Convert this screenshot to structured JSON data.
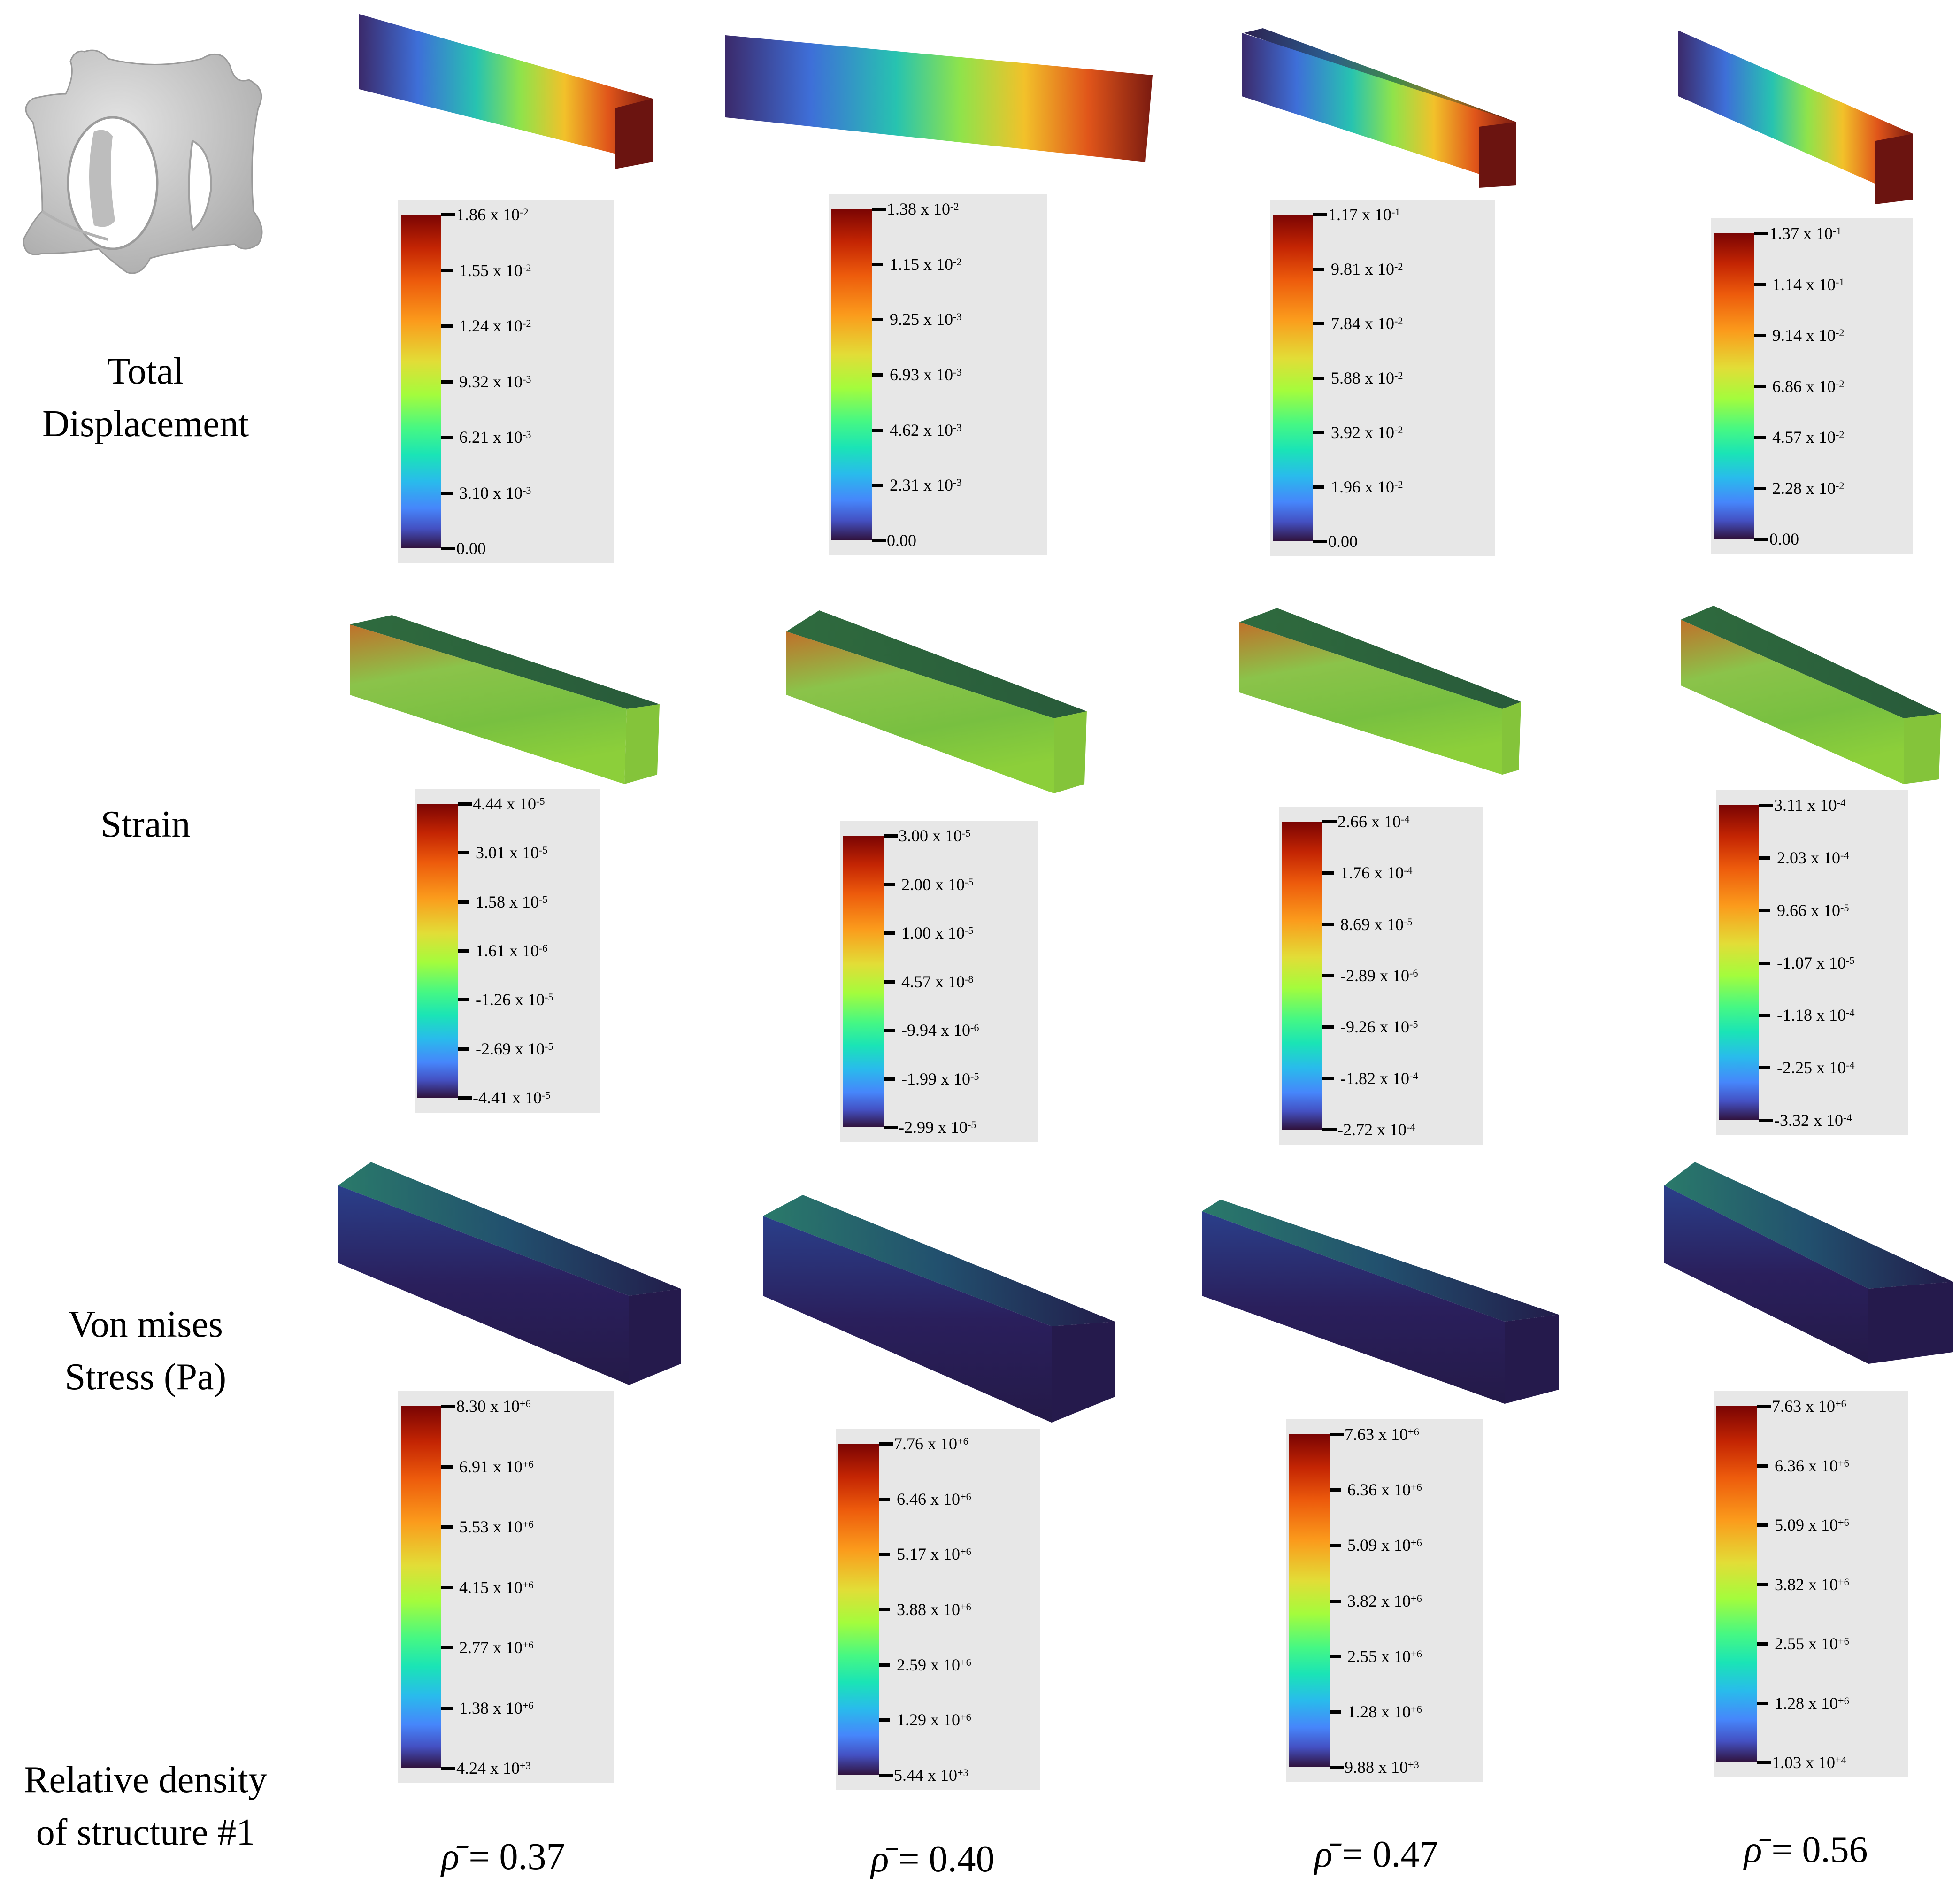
{
  "row_labels": {
    "total_displacement": [
      "Total",
      "Displacement"
    ],
    "strain": [
      "Strain"
    ],
    "von_mises": [
      "Von mises",
      "Stress (Pa)"
    ],
    "relative_density": [
      "Relative density",
      "of structure #1"
    ]
  },
  "rho_symbol": "ρ̄",
  "densities": [
    {
      "eq": " = 0.37"
    },
    {
      "eq": " = 0.40"
    },
    {
      "eq": " = 0.47"
    },
    {
      "eq": " = 0.56"
    }
  ],
  "legends": {
    "displacement": [
      [
        "1.86 x 10-2",
        "1.55 x 10-2",
        "1.24 x 10-2",
        "9.32 x 10-3",
        "6.21 x 10-3",
        "3.10 x 10-3",
        "0.00"
      ],
      [
        "1.38 x 10-2",
        "1.15 x 10-2",
        "9.25 x 10-3",
        "6.93 x 10-3",
        "4.62 x 10-3",
        "2.31 x 10-3",
        "0.00"
      ],
      [
        "1.17 x 10-1",
        "9.81 x 10-2",
        "7.84 x 10-2",
        "5.88 x 10-2",
        "3.92 x 10-2",
        "1.96 x 10-2",
        "0.00"
      ],
      [
        "1.37 x 10-1",
        "1.14 x 10-1",
        "9.14 x 10-2",
        "6.86 x 10-2",
        "4.57 x 10-2",
        "2.28 x 10-2",
        "0.00"
      ]
    ],
    "strain": [
      [
        "4.44 x 10-5",
        "3.01 x 10-5",
        "1.58 x 10-5",
        "1.61 x 10-6",
        "-1.26 x 10-5",
        "-2.69 x 10-5",
        "-4.41 x 10-5"
      ],
      [
        "3.00 x 10-5",
        "2.00 x 10-5",
        "1.00 x 10-5",
        "4.57 x 10-8",
        "-9.94 x 10-6",
        "-1.99 x 10-5",
        "-2.99 x 10-5"
      ],
      [
        "2.66 x 10-4",
        "1.76 x 10-4",
        "8.69 x 10-5",
        "-2.89 x 10-6",
        "-9.26 x 10-5",
        "-1.82 x 10-4",
        "-2.72 x 10-4"
      ],
      [
        "3.11 x 10-4",
        "2.03 x 10-4",
        "9.66 x 10-5",
        "-1.07 x 10-5",
        "-1.18 x 10-4",
        "-2.25 x 10-4",
        "-3.32 x 10-4"
      ]
    ],
    "stress": [
      [
        "8.30 x 10+6",
        "6.91 x 10+6",
        "5.53 x 10+6",
        "4.15 x 10+6",
        "2.77 x 10+6",
        "1.38 x 10+6",
        "4.24 x 10+3"
      ],
      [
        "7.76 x 10+6",
        "6.46 x 10+6",
        "5.17 x 10+6",
        "3.88 x 10+6",
        "2.59 x 10+6",
        "1.29 x 10+6",
        "5.44 x 10+3"
      ],
      [
        "7.63 x 10+6",
        "6.36 x 10+6",
        "5.09 x 10+6",
        "3.82 x 10+6",
        "2.55 x 10+6",
        "1.28 x 10+6",
        "9.88 x 10+3"
      ],
      [
        "7.63 x 10+6",
        "6.36 x 10+6",
        "5.09 x 10+6",
        "3.82 x 10+6",
        "2.55 x 10+6",
        "1.28 x 10+6",
        "1.03 x 10+4"
      ]
    ]
  },
  "colors": {
    "legend_bg": "#e7e7e7",
    "turbo_top": "#7a0403",
    "turbo_bottom": "#30123b",
    "cell_model": "#cfcfcf"
  }
}
